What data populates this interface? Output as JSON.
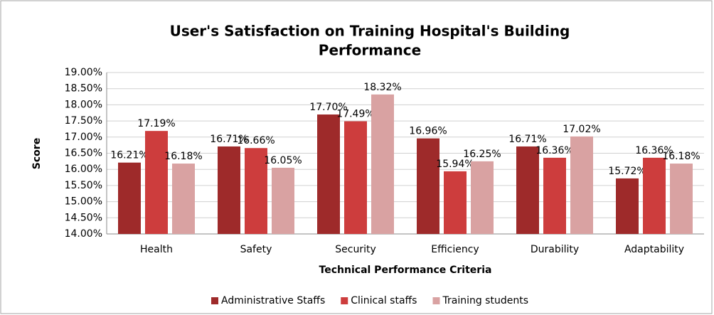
{
  "chart_data": {
    "type": "bar",
    "title": [
      "User's Satisfaction on Training Hospital's Building",
      "Performance"
    ],
    "x_label": "Technical Performance Criteria",
    "y_label": "Score",
    "categories": [
      "Health",
      "Safety",
      "Security",
      "Efficiency",
      "Durability",
      "Adaptability"
    ],
    "series": [
      {
        "name": "Administrative Staffs",
        "color": "#9e2a2a",
        "values": [
          16.21,
          16.71,
          17.7,
          16.96,
          16.71,
          15.72
        ],
        "value_labels": [
          "16.21%",
          "16.71%",
          "17.70%",
          "16.96%",
          "16.71%",
          "15.72%"
        ]
      },
      {
        "name": "Clinical staffs",
        "color": "#cd3d3d",
        "values": [
          17.19,
          16.66,
          17.49,
          15.94,
          16.36,
          16.36
        ],
        "value_labels": [
          "17.19%",
          "16.66%",
          "17.49%",
          "15.94%",
          "16.36%",
          "16.36%"
        ]
      },
      {
        "name": "Training students",
        "color": "#d9a2a2",
        "values": [
          16.18,
          16.05,
          18.32,
          16.25,
          17.02,
          16.18
        ],
        "value_labels": [
          "16.18%",
          "16.05%",
          "18.32%",
          "16.25%",
          "17.02%",
          "16.18%"
        ]
      }
    ],
    "ylim": [
      14,
      19
    ],
    "yticks": [
      {
        "value": 14,
        "label": "14.00%"
      },
      {
        "value": 14.5,
        "label": "14.50%"
      },
      {
        "value": 15,
        "label": "15.00%"
      },
      {
        "value": 15.5,
        "label": "15.50%"
      },
      {
        "value": 16,
        "label": "16.00%"
      },
      {
        "value": 16.5,
        "label": "16.50%"
      },
      {
        "value": 17,
        "label": "17.00%"
      },
      {
        "value": 17.5,
        "label": "17.50%"
      },
      {
        "value": 18,
        "label": "18.00%"
      },
      {
        "value": 18.5,
        "label": "18.50%"
      },
      {
        "value": 19,
        "label": "19.00%"
      }
    ],
    "grid": true,
    "legend": "bottom"
  }
}
